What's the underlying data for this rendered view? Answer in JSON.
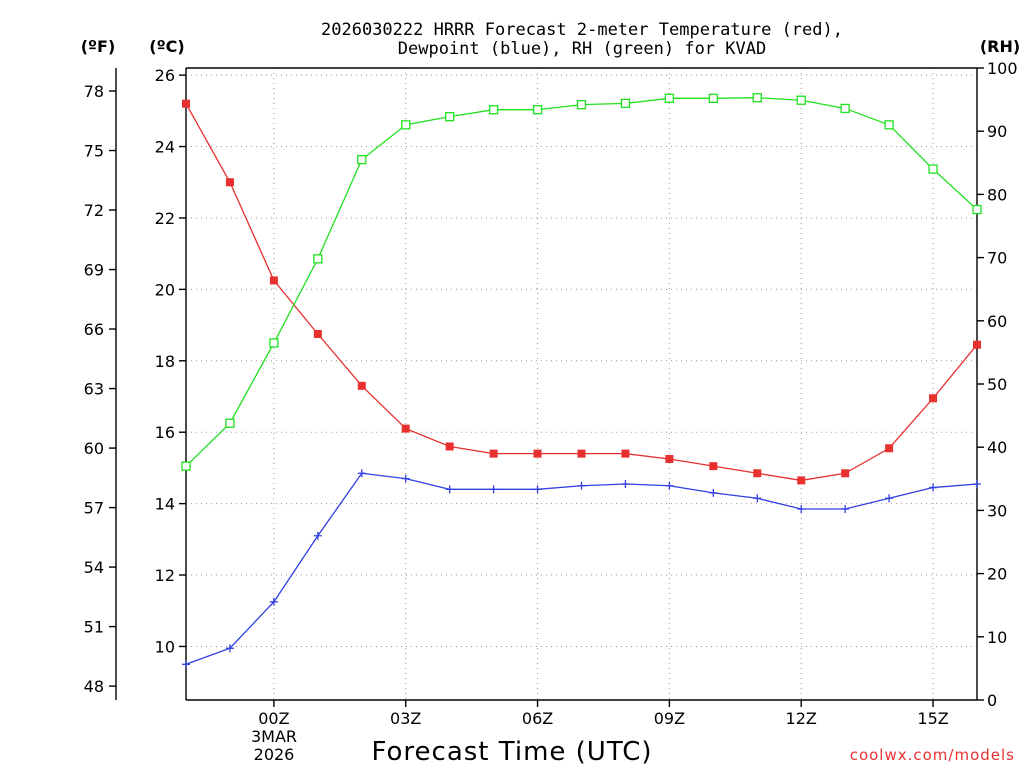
{
  "chart_data": {
    "type": "line",
    "title_line1": "2026030222 HRRR Forecast 2-meter Temperature (red),",
    "title_line2": "Dewpoint (blue), RH (green) for KVAD",
    "xlabel": "Forecast Time (UTC)",
    "credit": "coolwx.com/models",
    "units": {
      "fahrenheit": "(ºF)",
      "celsius": "(ºC)",
      "rh": "(RH)"
    },
    "x_ticks": [
      {
        "hour": 2,
        "label": "00Z"
      },
      {
        "hour": 5,
        "label": "03Z"
      },
      {
        "hour": 8,
        "label": "06Z"
      },
      {
        "hour": 11,
        "label": "09Z"
      },
      {
        "hour": 14,
        "label": "12Z"
      },
      {
        "hour": 17,
        "label": "15Z"
      }
    ],
    "date_label_line1": "3MAR",
    "date_label_line2": "2026",
    "xlim": [
      0,
      18
    ],
    "celsius_ticks": [
      10,
      12,
      14,
      16,
      18,
      20,
      22,
      24,
      26
    ],
    "celsius_range": [
      8.5,
      26.2
    ],
    "fahrenheit_ticks": [
      48,
      51,
      54,
      57,
      60,
      63,
      66,
      69,
      72,
      75,
      78
    ],
    "rh_ticks": [
      0,
      10,
      20,
      30,
      40,
      50,
      60,
      70,
      80,
      90,
      100
    ],
    "rh_range": [
      0,
      100
    ],
    "colors": {
      "temperature": "#e8302f",
      "dewpoint": "#2f3fe0",
      "rh": "#1fe11f"
    },
    "series": [
      {
        "name": "Temperature",
        "unit": "C",
        "marker": "filled-square",
        "hours": [
          0,
          1,
          2,
          3,
          4,
          5,
          6,
          7,
          8,
          9,
          10,
          11,
          12,
          13,
          14,
          15,
          16,
          17,
          18
        ],
        "values": [
          25.2,
          23.0,
          20.25,
          18.75,
          17.3,
          16.1,
          15.6,
          15.4,
          15.4,
          15.4,
          15.4,
          15.25,
          15.05,
          14.85,
          14.65,
          14.85,
          15.55,
          16.95,
          18.45
        ]
      },
      {
        "name": "Dewpoint",
        "unit": "C",
        "marker": "plus",
        "hours": [
          0,
          1,
          2,
          3,
          4,
          5,
          6,
          7,
          8,
          9,
          10,
          11,
          12,
          13,
          14,
          15,
          16,
          17,
          18
        ],
        "values": [
          9.5,
          9.95,
          11.25,
          13.1,
          14.85,
          14.7,
          14.4,
          14.4,
          14.4,
          14.5,
          14.55,
          14.5,
          14.3,
          14.15,
          13.85,
          13.85,
          14.15,
          14.45,
          14.55
        ]
      },
      {
        "name": "RH",
        "unit": "%",
        "marker": "open-square",
        "hours": [
          0,
          1,
          2,
          3,
          4,
          5,
          6,
          7,
          8,
          9,
          10,
          11,
          12,
          13,
          14,
          15,
          16,
          17,
          18
        ],
        "values": [
          37.0,
          43.8,
          56.5,
          69.8,
          85.5,
          91.0,
          92.3,
          93.4,
          93.4,
          94.2,
          94.4,
          95.2,
          95.2,
          95.3,
          94.9,
          93.6,
          91.0,
          84.0,
          77.6
        ]
      }
    ]
  }
}
